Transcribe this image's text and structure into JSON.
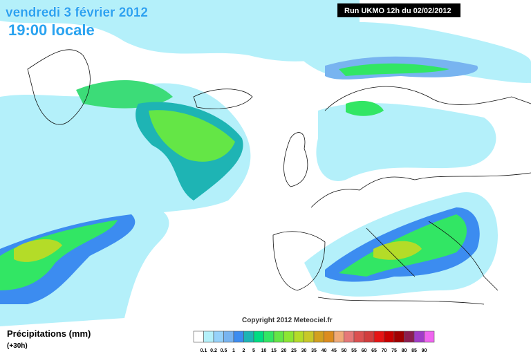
{
  "header": {
    "date": "vendredi 3 février 2012",
    "time": "19:00 locale",
    "run": "Run UKMO 12h du 02/02/2012"
  },
  "copyright": "Copyright 2012 Meteociel.fr",
  "legend": {
    "title": "Précipitations (mm)",
    "lead": "(+30h)",
    "labels": [
      "0.1",
      "0.2",
      "0.5",
      "1",
      "2",
      "5",
      "10",
      "15",
      "20",
      "25",
      "30",
      "35",
      "40",
      "45",
      "50",
      "55",
      "60",
      "65",
      "70",
      "75",
      "80",
      "85",
      "90"
    ],
    "colors": [
      "#ffffff",
      "#b4f0fa",
      "#96d2fa",
      "#78b4f0",
      "#3c8cf0",
      "#1eb4b4",
      "#00dc82",
      "#32e664",
      "#64e646",
      "#8ce632",
      "#b4dc28",
      "#c8c828",
      "#d2a01e",
      "#dc8c1e",
      "#f0aa78",
      "#e67878",
      "#dc5050",
      "#d23c3c",
      "#e61414",
      "#c80000",
      "#a00000",
      "#8c1e50",
      "#a03cc8",
      "#f064f0"
    ]
  }
}
